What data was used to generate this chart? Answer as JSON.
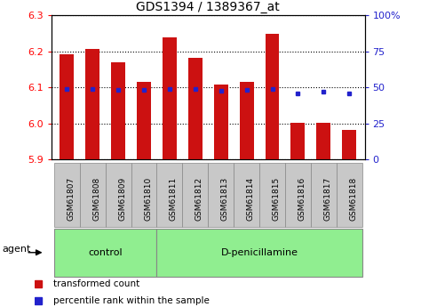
{
  "title": "GDS1394 / 1389367_at",
  "samples": [
    "GSM61807",
    "GSM61808",
    "GSM61809",
    "GSM61810",
    "GSM61811",
    "GSM61812",
    "GSM61813",
    "GSM61814",
    "GSM61815",
    "GSM61816",
    "GSM61817",
    "GSM61818"
  ],
  "bar_tops": [
    6.193,
    6.207,
    6.17,
    6.115,
    6.24,
    6.182,
    6.107,
    6.115,
    6.25,
    6.003,
    6.003,
    5.983
  ],
  "blue_y": [
    6.095,
    6.095,
    6.093,
    6.093,
    6.095,
    6.095,
    6.09,
    6.093,
    6.097,
    6.083,
    6.088,
    6.083
  ],
  "ymin": 5.9,
  "ymax": 6.3,
  "bar_bottom": 5.9,
  "bar_color": "#cc1111",
  "blue_color": "#2222cc",
  "left_yticks": [
    5.9,
    6.0,
    6.1,
    6.2,
    6.3
  ],
  "right_yticks": [
    0,
    25,
    50,
    75,
    100
  ],
  "right_ylabels": [
    "0",
    "25",
    "50",
    "75",
    "100%"
  ],
  "control_samples": 4,
  "control_label": "control",
  "treatment_label": "D-penicillamine",
  "agent_label": "agent",
  "legend_red": "transformed count",
  "legend_blue": "percentile rank within the sample",
  "bar_width": 0.55,
  "group_bg_color": "#90ee90",
  "tick_bg_color": "#c8c8c8"
}
